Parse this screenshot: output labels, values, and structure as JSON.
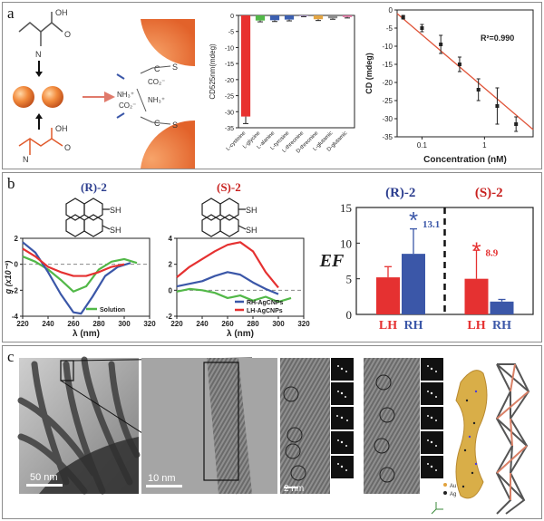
{
  "panels": {
    "a": "a",
    "b": "b",
    "c": "c"
  },
  "panel_a": {
    "schematic": {
      "carboxyl_label": "OH",
      "oxygen_label": "O",
      "nitrogen_label": "N",
      "ions": [
        "CO₂⁻",
        "NH₃⁺",
        "CO₂⁻",
        "NH₃⁺"
      ],
      "sulfur_label": "S",
      "carbon_label": "C"
    }
  },
  "panel_b": {
    "chem_labels": {
      "left": "(R)-2",
      "middle": "(S)-2",
      "thiol": "SH"
    },
    "legend": {
      "solution": "Solution",
      "rh": "RH-AgCNPs",
      "lh": "LH-AgCNPs"
    }
  },
  "panel_c": {
    "scale_1": "50 nm",
    "scale_2": "10 nm",
    "scale_3": "2 nm",
    "legend_au": "Au",
    "legend_ag": "Ag"
  },
  "chart_data": [
    {
      "id": "a-bar",
      "type": "bar",
      "ylabel": "CD525nm(mdeg)",
      "ylim": [
        0,
        -35
      ],
      "yticks": [
        "0",
        "-5",
        "-10",
        "-15",
        "-20",
        "-25",
        "-30",
        "-35"
      ],
      "categories": [
        "L-cysteine",
        "L-glycine",
        "L-alanine",
        "L-tyrosine",
        "L-threonine",
        "D-threonine",
        "L-glutamic",
        "D-glutamic"
      ],
      "values": [
        -31.5,
        -1.6,
        -1.5,
        -1.3,
        -0.2,
        -1.2,
        -0.9,
        -0.5
      ],
      "errors": [
        2.2,
        0.4,
        0.4,
        0.4,
        0.2,
        0.4,
        0.3,
        0.3
      ],
      "colors": [
        "#e8312f",
        "#52b848",
        "#3c5fb0",
        "#3c5fb0",
        "#b8a2d4",
        "#e3a543",
        "#8c8c8c",
        "#d96d9a"
      ]
    },
    {
      "id": "a-line",
      "type": "scatter",
      "xlabel": "Concentration (nM)",
      "ylabel": "CD (mdeg)",
      "xscale": "log",
      "xlim": [
        0.04,
        6
      ],
      "ylim": [
        0,
        -35
      ],
      "yticks": [
        "0",
        "-5",
        "-10",
        "-15",
        "-20",
        "-25",
        "-30",
        "-35"
      ],
      "xticks": [
        "0.1",
        "1"
      ],
      "annotation": "R²=0.990",
      "x": [
        0.05,
        0.1,
        0.2,
        0.4,
        0.8,
        1.6,
        3.2
      ],
      "y": [
        -2,
        -5,
        -9.5,
        -15,
        -22,
        -26.5,
        -31.5
      ],
      "errors": [
        0.5,
        1,
        2.5,
        2,
        3,
        5,
        2
      ],
      "fit": {
        "x": [
          0.04,
          6
        ],
        "y": [
          -1,
          -33
        ]
      }
    },
    {
      "id": "b-left",
      "type": "line",
      "xlabel": "λ (nm)",
      "ylabel": "g (x10⁻³)",
      "xlim": [
        220,
        320
      ],
      "ylim": [
        -4,
        2
      ],
      "xticks": [
        "220",
        "240",
        "260",
        "280",
        "300",
        "320"
      ],
      "yticks": [
        "2",
        "0",
        "-2",
        "-4"
      ],
      "series": [
        {
          "name": "Solution",
          "color": "#52b848",
          "x": [
            220,
            230,
            240,
            250,
            260,
            270,
            280,
            290,
            300,
            310
          ],
          "y": [
            0.6,
            0.2,
            -0.4,
            -1.2,
            -2.1,
            -1.7,
            -0.4,
            0.2,
            0.4,
            0.1
          ]
        },
        {
          "name": "RH-AgCNPs",
          "color": "#3b57a8",
          "x": [
            220,
            230,
            240,
            250,
            260,
            266,
            275,
            285,
            295,
            305
          ],
          "y": [
            1.7,
            0.9,
            -0.6,
            -2.3,
            -3.7,
            -3.8,
            -2.5,
            -0.9,
            -0.2,
            0.1
          ]
        },
        {
          "name": "LH-AgCNPs",
          "color": "#e53131",
          "x": [
            220,
            230,
            240,
            250,
            260,
            270,
            280,
            290,
            300
          ],
          "y": [
            1.2,
            0.6,
            -0.2,
            -0.6,
            -0.9,
            -0.9,
            -0.6,
            -0.2,
            0.0
          ]
        }
      ]
    },
    {
      "id": "b-middle",
      "type": "line",
      "xlabel": "λ (nm)",
      "ylabel": "",
      "xlim": [
        220,
        320
      ],
      "ylim": [
        -2,
        4
      ],
      "xticks": [
        "220",
        "240",
        "260",
        "280",
        "300",
        "320"
      ],
      "yticks": [
        "4",
        "2",
        "0",
        "-2"
      ],
      "series": [
        {
          "name": "Solution",
          "color": "#52b848",
          "x": [
            220,
            230,
            240,
            250,
            260,
            270,
            280,
            290,
            300,
            310
          ],
          "y": [
            -0.1,
            0.1,
            0.0,
            -0.2,
            -0.6,
            -0.4,
            -0.8,
            -0.5,
            -0.9,
            -0.6
          ]
        },
        {
          "name": "RH-AgCNPs",
          "color": "#3b57a8",
          "x": [
            220,
            230,
            240,
            250,
            260,
            270,
            280,
            290,
            300
          ],
          "y": [
            0.3,
            0.5,
            0.7,
            1.1,
            1.4,
            1.2,
            0.6,
            0.1,
            -0.3
          ]
        },
        {
          "name": "LH-AgCNPs",
          "color": "#e53131",
          "x": [
            220,
            230,
            240,
            250,
            260,
            270,
            280,
            290,
            300
          ],
          "y": [
            1.0,
            1.8,
            2.4,
            3.0,
            3.5,
            3.7,
            3.0,
            1.4,
            0.2
          ]
        }
      ]
    },
    {
      "id": "b-right",
      "type": "bar",
      "ylabel": "EF",
      "ylim": [
        0,
        15
      ],
      "yticks": [
        "0",
        "5",
        "10",
        "15"
      ],
      "group_labels": [
        "(R)-2",
        "(S)-2"
      ],
      "categories": [
        "LH",
        "RH",
        "LH",
        "RH"
      ],
      "values": [
        5.2,
        8.5,
        5.0,
        1.8
      ],
      "errors": [
        1.5,
        3.5,
        4.0,
        0.3
      ],
      "colors": [
        "#e53131",
        "#3b57a8",
        "#e53131",
        "#3b57a8"
      ],
      "annotations": [
        "13.1",
        "8.9"
      ],
      "stars": [
        "*",
        "*"
      ]
    }
  ]
}
